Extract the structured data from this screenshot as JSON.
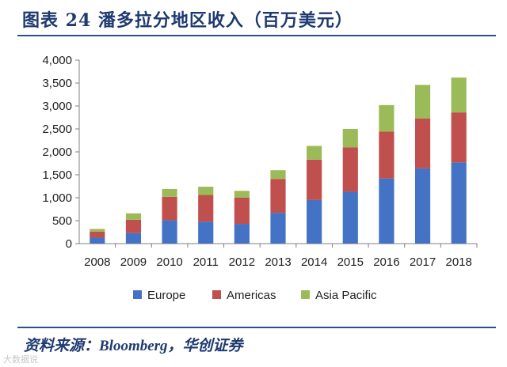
{
  "header": {
    "title": "图表 24  潘多拉分地区收入（百万美元）"
  },
  "footer": {
    "source": "资料来源：Bloomberg，华创证券",
    "watermark": "大数据说"
  },
  "chart_data": {
    "type": "bar",
    "stacked": true,
    "title": "潘多拉分地区收入（百万美元）",
    "xlabel": "",
    "ylabel": "",
    "categories": [
      "2008",
      "2009",
      "2010",
      "2011",
      "2012",
      "2013",
      "2014",
      "2015",
      "2016",
      "2017",
      "2018"
    ],
    "ylim": [
      0,
      4000
    ],
    "yticks": [
      0,
      500,
      1000,
      1500,
      2000,
      2500,
      3000,
      3500,
      4000
    ],
    "ytick_labels": [
      "0",
      "500",
      "1,000",
      "1,500",
      "2,000",
      "2,500",
      "3,000",
      "3,500",
      "4,000"
    ],
    "grid": false,
    "legend_position": "bottom",
    "series": [
      {
        "name": "Europe",
        "color": "#4472c4",
        "values": [
          130,
          230,
          510,
          480,
          430,
          670,
          950,
          1130,
          1420,
          1640,
          1770
        ]
      },
      {
        "name": "Americas",
        "color": "#c0504d",
        "values": [
          130,
          290,
          510,
          580,
          570,
          740,
          880,
          970,
          1020,
          1090,
          1090
        ]
      },
      {
        "name": "Asia Pacific",
        "color": "#9bbb59",
        "values": [
          60,
          140,
          170,
          180,
          150,
          190,
          300,
          400,
          580,
          730,
          760
        ]
      }
    ]
  }
}
